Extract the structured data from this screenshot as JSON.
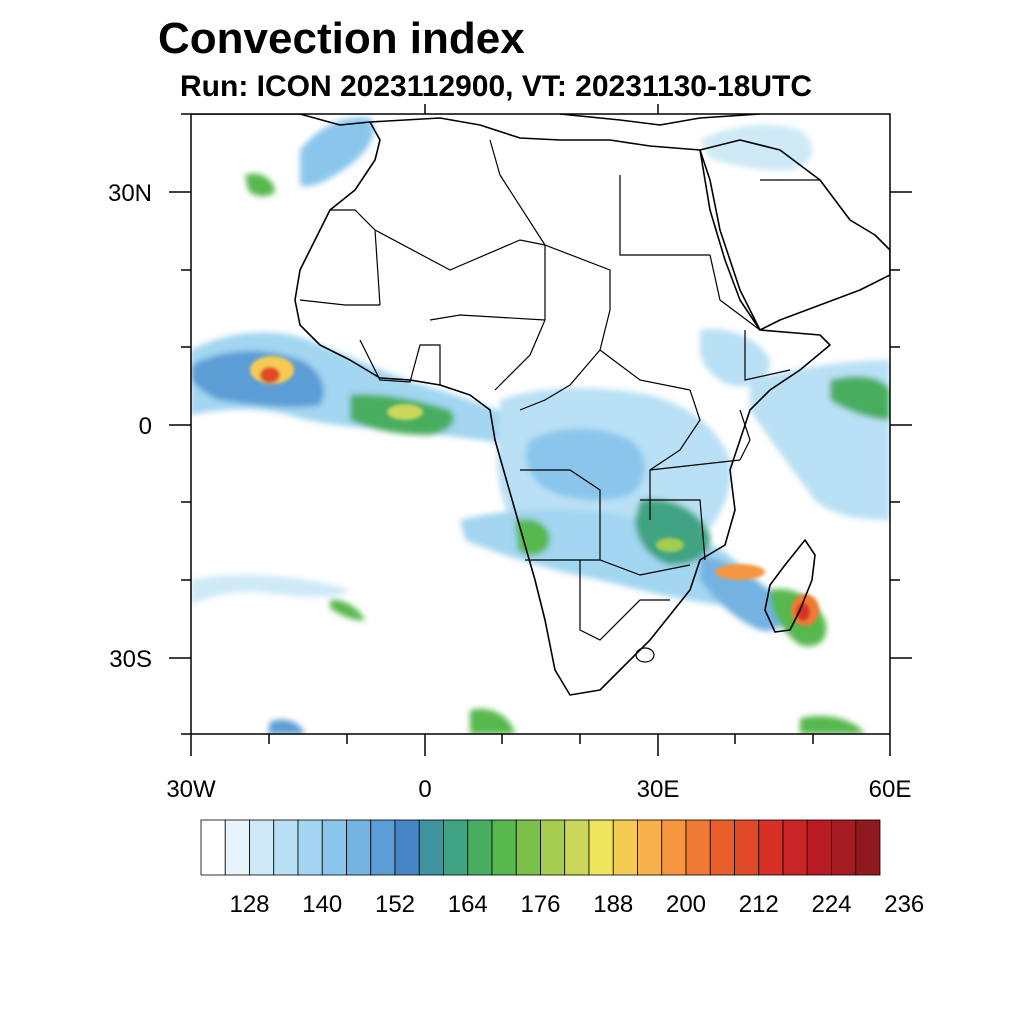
{
  "title": "Convection index",
  "subtitle": "Run: ICON 2023112900,  VT: 20231130-18UTC",
  "map": {
    "region": "Africa",
    "lon_range": [
      -30,
      60
    ],
    "lat_range": [
      -40,
      40
    ],
    "x_ticks": [
      "30W",
      "0",
      "30E",
      "60E"
    ],
    "y_ticks": [
      "30N",
      "0",
      "30S"
    ],
    "colors": {
      "land_border": "#000000",
      "background": "#ffffff"
    }
  },
  "colorbar": {
    "labels": [
      "128",
      "140",
      "152",
      "164",
      "176",
      "188",
      "200",
      "212",
      "224",
      "236"
    ],
    "colors": [
      "#ffffff",
      "#e8f4fb",
      "#cfe9f7",
      "#b9e0f4",
      "#a2d6f1",
      "#8ac6ec",
      "#75b3e2",
      "#5b9dd5",
      "#4686c4",
      "#3f939e",
      "#3fa484",
      "#49ad61",
      "#57b84d",
      "#7cc04c",
      "#a6cc50",
      "#cbd75a",
      "#eee55c",
      "#f6cb53",
      "#f7b24b",
      "#f59640",
      "#f07a35",
      "#ea5e2c",
      "#e14a28",
      "#d83027",
      "#c92526",
      "#b71c24",
      "#a41b21",
      "#8f191d"
    ]
  }
}
